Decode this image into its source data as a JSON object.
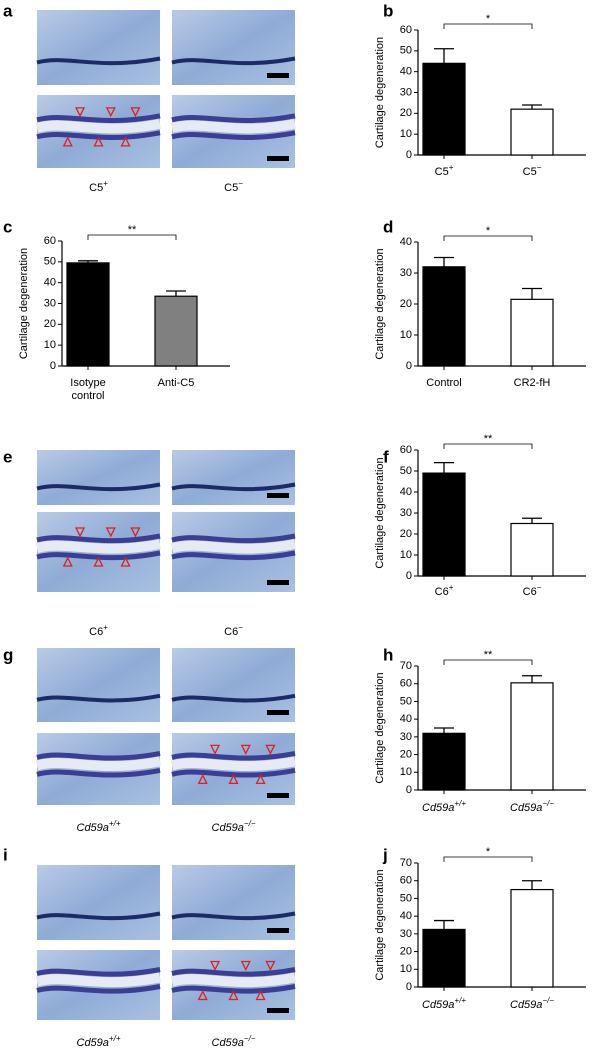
{
  "chart_data": [
    {
      "type": "bar",
      "panel": "b",
      "ylabel": "Cartilage degeneration",
      "categories": [
        "C5",
        "C5"
      ],
      "category_superscripts": [
        "+",
        "−"
      ],
      "values": [
        44,
        22
      ],
      "errors": [
        7,
        2
      ],
      "colors": [
        "#000000",
        "#ffffff"
      ],
      "edgecolor": "#000000",
      "ylim": [
        0,
        60
      ],
      "yticks": [
        0,
        10,
        20,
        30,
        40,
        50,
        60
      ],
      "significance": "*"
    },
    {
      "type": "bar",
      "panel": "c",
      "ylabel": "Cartilage degeneration",
      "categories": [
        "Isotype control",
        "Anti-C5"
      ],
      "values": [
        49.5,
        33.5
      ],
      "errors": [
        1,
        2.5
      ],
      "colors": [
        "#000000",
        "#808080"
      ],
      "edgecolor": "#000000",
      "ylim": [
        0,
        60
      ],
      "yticks": [
        0,
        10,
        20,
        30,
        40,
        50,
        60
      ],
      "significance": "**"
    },
    {
      "type": "bar",
      "panel": "d",
      "ylabel": "Cartilage degeneration",
      "categories": [
        "Control",
        "CR2-fH"
      ],
      "values": [
        32,
        21.5
      ],
      "errors": [
        3,
        3.5
      ],
      "colors": [
        "#000000",
        "#ffffff"
      ],
      "edgecolor": "#000000",
      "ylim": [
        0,
        40
      ],
      "yticks": [
        0,
        10,
        20,
        30,
        40
      ],
      "significance": "*"
    },
    {
      "type": "bar",
      "panel": "f",
      "ylabel": "Cartilage degeneration",
      "categories": [
        "C6",
        "C6"
      ],
      "category_superscripts": [
        "+",
        "−"
      ],
      "values": [
        49,
        25
      ],
      "errors": [
        5,
        2.5
      ],
      "colors": [
        "#000000",
        "#ffffff"
      ],
      "edgecolor": "#000000",
      "ylim": [
        0,
        60
      ],
      "yticks": [
        0,
        10,
        20,
        30,
        40,
        50,
        60
      ],
      "significance": "**"
    },
    {
      "type": "bar",
      "panel": "h",
      "ylabel": "Cartilage degeneration",
      "categories": [
        "Cd59a",
        "Cd59a"
      ],
      "category_superscripts": [
        "+/+",
        "−/−"
      ],
      "italic_categories": true,
      "values": [
        32,
        60.5
      ],
      "errors": [
        3,
        4
      ],
      "colors": [
        "#000000",
        "#ffffff"
      ],
      "edgecolor": "#000000",
      "ylim": [
        0,
        70
      ],
      "yticks": [
        0,
        10,
        20,
        30,
        40,
        50,
        60,
        70
      ],
      "significance": "**"
    },
    {
      "type": "bar",
      "panel": "j",
      "ylabel": "Cartilage degeneration",
      "categories": [
        "Cd59a",
        "Cd59a"
      ],
      "category_superscripts": [
        "+/+",
        "−/−"
      ],
      "italic_categories": true,
      "values": [
        32.5,
        55
      ],
      "errors": [
        5,
        5
      ],
      "colors": [
        "#000000",
        "#ffffff"
      ],
      "edgecolor": "#000000",
      "ylim": [
        0,
        70
      ],
      "yticks": [
        0,
        10,
        20,
        30,
        40,
        50,
        60,
        70
      ],
      "significance": "*"
    }
  ],
  "image_panels": [
    {
      "panel": "a",
      "captions": [
        "C5",
        "C5"
      ],
      "caption_superscripts": [
        "+",
        "−"
      ]
    },
    {
      "panel": "e",
      "captions": [
        "C6",
        "C6"
      ],
      "caption_superscripts": [
        "+",
        "−"
      ]
    },
    {
      "panel": "g",
      "captions": [
        "Cd59a",
        "Cd59a"
      ],
      "caption_superscripts": [
        "+/+",
        "−/−"
      ],
      "italic_captions": true
    },
    {
      "panel": "i",
      "captions": [
        "Cd59a",
        "Cd59a"
      ],
      "caption_superscripts": [
        "+/+",
        "−/−"
      ],
      "italic_captions": true
    }
  ]
}
